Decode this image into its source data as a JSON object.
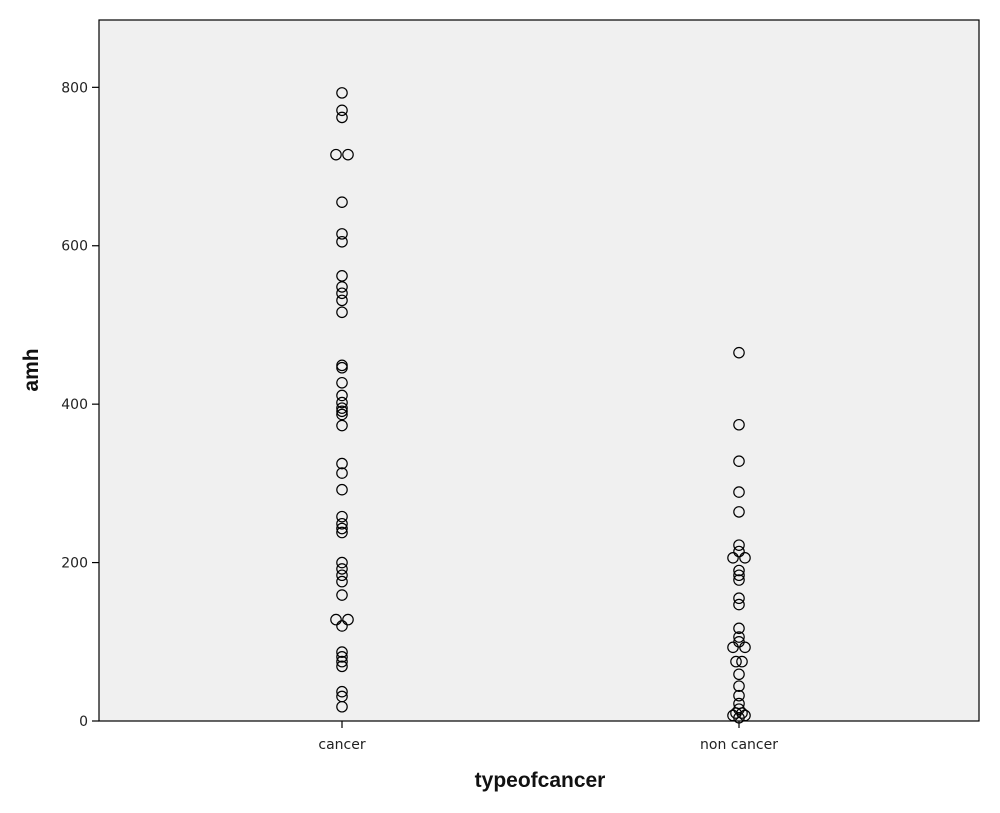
{
  "chart_data": {
    "type": "scatter",
    "title": "",
    "xlabel": "typeofcancer",
    "ylabel": "amh",
    "categories": [
      "cancer",
      "non cancer"
    ],
    "ylim": [
      0,
      885
    ],
    "yticks": [
      0,
      200,
      400,
      600,
      800
    ],
    "grid": false,
    "legend": "none",
    "marker": "open-circle",
    "colors": {
      "plot_background": "#f0f0f0",
      "marker_stroke": "#000000",
      "axis": "#000000"
    },
    "series": [
      {
        "category": "cancer",
        "points": [
          {
            "offset": 0,
            "value": 793
          },
          {
            "offset": 0,
            "value": 771
          },
          {
            "offset": 0,
            "value": 762
          },
          {
            "offset": -1,
            "value": 715
          },
          {
            "offset": 1,
            "value": 715
          },
          {
            "offset": 0,
            "value": 655
          },
          {
            "offset": 0,
            "value": 615
          },
          {
            "offset": 0,
            "value": 605
          },
          {
            "offset": 0,
            "value": 562
          },
          {
            "offset": 0,
            "value": 548
          },
          {
            "offset": 0,
            "value": 540
          },
          {
            "offset": 0,
            "value": 531
          },
          {
            "offset": 0,
            "value": 516
          },
          {
            "offset": 0,
            "value": 449
          },
          {
            "offset": 0,
            "value": 446
          },
          {
            "offset": 0,
            "value": 427
          },
          {
            "offset": 0,
            "value": 411
          },
          {
            "offset": 0,
            "value": 402
          },
          {
            "offset": 0,
            "value": 395
          },
          {
            "offset": 0,
            "value": 391
          },
          {
            "offset": 0,
            "value": 387
          },
          {
            "offset": 0,
            "value": 373
          },
          {
            "offset": 0,
            "value": 325
          },
          {
            "offset": 0,
            "value": 313
          },
          {
            "offset": 0,
            "value": 292
          },
          {
            "offset": 0,
            "value": 258
          },
          {
            "offset": 0,
            "value": 249
          },
          {
            "offset": 0,
            "value": 243
          },
          {
            "offset": 0,
            "value": 238
          },
          {
            "offset": 0,
            "value": 200
          },
          {
            "offset": 0,
            "value": 192
          },
          {
            "offset": 0,
            "value": 184
          },
          {
            "offset": 0,
            "value": 176
          },
          {
            "offset": 0,
            "value": 159
          },
          {
            "offset": -1,
            "value": 128
          },
          {
            "offset": 1,
            "value": 128
          },
          {
            "offset": 0,
            "value": 120
          },
          {
            "offset": 0,
            "value": 87
          },
          {
            "offset": 0,
            "value": 81
          },
          {
            "offset": 0,
            "value": 75
          },
          {
            "offset": 0,
            "value": 69
          },
          {
            "offset": 0,
            "value": 37
          },
          {
            "offset": 0,
            "value": 31
          },
          {
            "offset": 0,
            "value": 18
          }
        ]
      },
      {
        "category": "non cancer",
        "points": [
          {
            "offset": 0,
            "value": 465
          },
          {
            "offset": 0,
            "value": 374
          },
          {
            "offset": 0,
            "value": 328
          },
          {
            "offset": 0,
            "value": 289
          },
          {
            "offset": 0,
            "value": 264
          },
          {
            "offset": 0,
            "value": 222
          },
          {
            "offset": 0,
            "value": 214
          },
          {
            "offset": -1,
            "value": 206
          },
          {
            "offset": 1,
            "value": 206
          },
          {
            "offset": 0,
            "value": 190
          },
          {
            "offset": 0,
            "value": 184
          },
          {
            "offset": 0,
            "value": 178
          },
          {
            "offset": 0,
            "value": 155
          },
          {
            "offset": 0,
            "value": 147
          },
          {
            "offset": 0,
            "value": 117
          },
          {
            "offset": 0,
            "value": 106
          },
          {
            "offset": 0,
            "value": 100
          },
          {
            "offset": -1,
            "value": 93
          },
          {
            "offset": 1,
            "value": 93
          },
          {
            "offset": -0.5,
            "value": 75
          },
          {
            "offset": 0.5,
            "value": 75
          },
          {
            "offset": 0,
            "value": 59
          },
          {
            "offset": 0,
            "value": 44
          },
          {
            "offset": 0,
            "value": 32
          },
          {
            "offset": 0,
            "value": 22
          },
          {
            "offset": 0,
            "value": 15
          },
          {
            "offset": -0.5,
            "value": 10
          },
          {
            "offset": 0.5,
            "value": 10
          },
          {
            "offset": -1,
            "value": 7
          },
          {
            "offset": 1,
            "value": 7
          },
          {
            "offset": 0,
            "value": 4
          }
        ]
      }
    ]
  }
}
